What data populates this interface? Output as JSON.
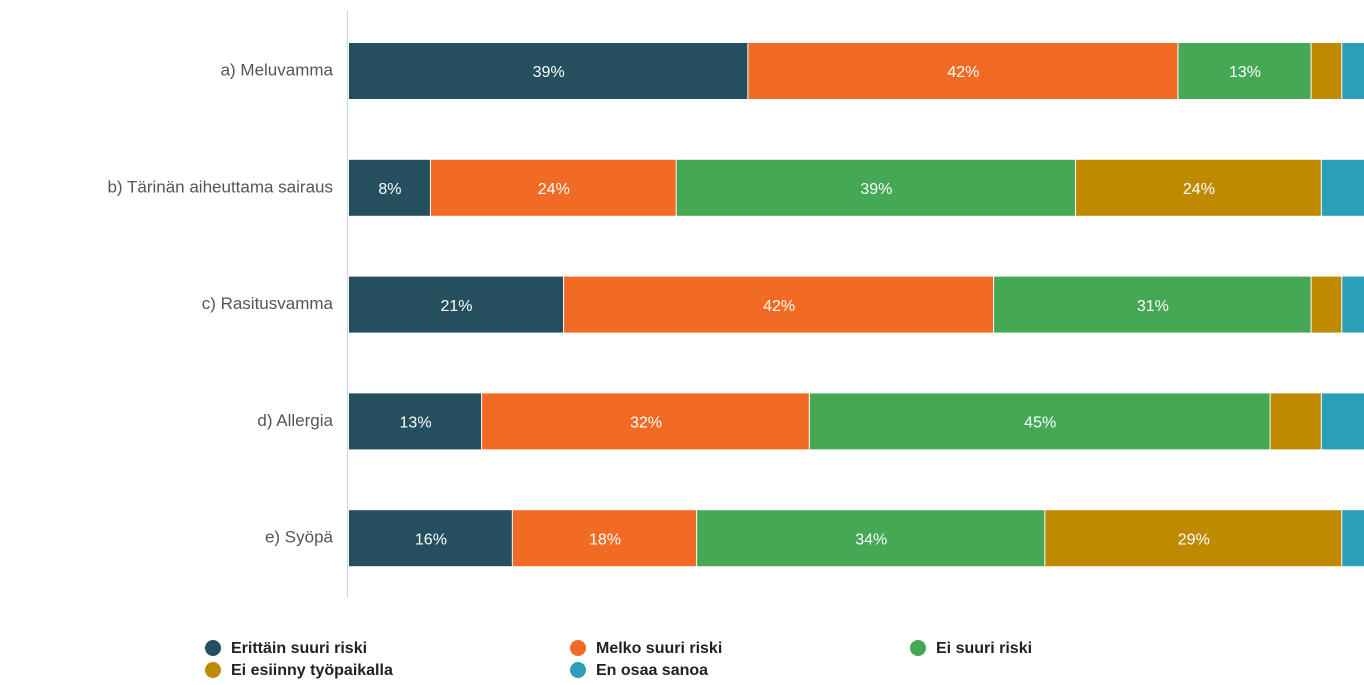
{
  "chart_data": {
    "type": "stacked_barh",
    "categories": [
      "a) Meluvamma",
      "b) Tärinän aiheuttama sairaus",
      "c) Rasitusvamma",
      "d) Allergia",
      "e) Syöpä"
    ],
    "series": [
      {
        "name": "Erittäin suuri riski",
        "color": "#234f5e",
        "values": [
          39,
          8,
          21,
          13,
          16
        ],
        "value_labels": [
          "39%",
          "8%",
          "21%",
          "13%",
          "16%"
        ]
      },
      {
        "name": "Melko suuri riski",
        "color": "#f26b25",
        "values": [
          42,
          24,
          42,
          32,
          18
        ],
        "value_labels": [
          "42%",
          "24%",
          "42%",
          "32%",
          "18%"
        ]
      },
      {
        "name": "Ei suuri riski",
        "color": "#45a854",
        "values": [
          13,
          39,
          31,
          45,
          34
        ],
        "value_labels": [
          "13%",
          "39%",
          "31%",
          "45%",
          "34%"
        ]
      },
      {
        "name": "Ei esiinny työpaikalla",
        "color": "#c08a00",
        "values": [
          3,
          24,
          3,
          5,
          29
        ],
        "value_labels": [
          null,
          "24%",
          null,
          null,
          "29%"
        ]
      },
      {
        "name": "En osaa sanoa",
        "color": "#2aa0b8",
        "values": [
          3,
          5,
          3,
          5,
          3
        ],
        "value_labels": [
          null,
          null,
          null,
          null,
          null
        ]
      }
    ],
    "xlim": [
      0,
      100
    ]
  }
}
